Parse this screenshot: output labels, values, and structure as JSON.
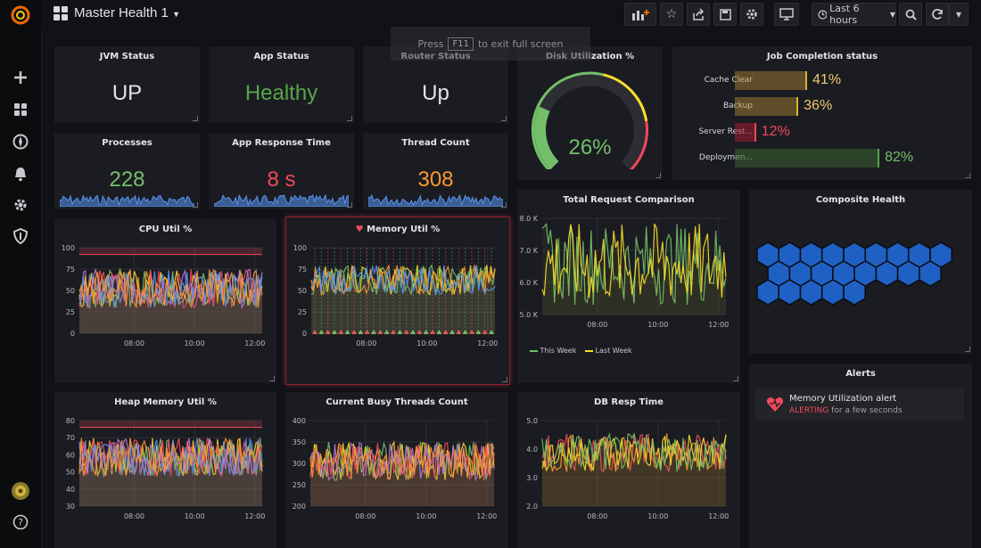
{
  "colors": {
    "bg": "#111217",
    "panel": "#1b1c21",
    "green": "#73bf69",
    "red": "#f2495c",
    "orange": "#ff9830",
    "yellow": "#fade2a",
    "blue": "#5794f2",
    "hex": "#1f60c4"
  },
  "header": {
    "dashboard_title": "Master Health 1",
    "time_range": "Last 6 hours"
  },
  "overlay": {
    "press": "Press",
    "key": "F11",
    "suffix": "to exit full screen"
  },
  "stats": {
    "jvm": {
      "title": "JVM Status",
      "value": "UP"
    },
    "app": {
      "title": "App Status",
      "value": "Healthy"
    },
    "router": {
      "title": "Router Status",
      "value": "Up"
    },
    "processes": {
      "title": "Processes",
      "value": "228"
    },
    "response": {
      "title": "App Response Time",
      "value": "8 s"
    },
    "threads": {
      "title": "Thread Count",
      "value": "308"
    }
  },
  "disk": {
    "title": "Disk Utilization %",
    "value": "26%",
    "level": 0.26
  },
  "jobs": {
    "title": "Job Completion status",
    "items": [
      {
        "label": "Cache Clear",
        "value": "41%",
        "fraction": 0.41
      },
      {
        "label": "Backup",
        "value": "36%",
        "fraction": 0.36
      },
      {
        "label": "Server Rest...",
        "value": "12%",
        "fraction": 0.12
      },
      {
        "label": "Deploymen...",
        "value": "82%",
        "fraction": 0.82
      }
    ]
  },
  "composite": {
    "title": "Composite Health"
  },
  "alerts": {
    "title": "Alerts",
    "item": {
      "name": "Memory Utilization alert",
      "state": "ALERTING",
      "duration": "for a few seconds"
    }
  },
  "chart_data": [
    {
      "type": "line",
      "title": "CPU Util %",
      "y_ticks": [
        "100",
        "75",
        "50",
        "25",
        "0"
      ],
      "x_ticks": [
        "08:00",
        "10:00",
        "12:00"
      ],
      "ylim": [
        0,
        100
      ]
    },
    {
      "type": "line",
      "title": "Memory Util %",
      "y_ticks": [
        "100",
        "75",
        "50",
        "25",
        "0"
      ],
      "x_ticks": [
        "08:00",
        "10:00",
        "12:00"
      ],
      "ylim": [
        0,
        100
      ]
    },
    {
      "type": "line",
      "title": "Total Request Comparison",
      "y_ticks": [
        "8.0 K",
        "7.0 K",
        "6.0 K",
        "5.0 K"
      ],
      "x_ticks": [
        "08:00",
        "10:00",
        "12:00"
      ],
      "ylim": [
        5000,
        8000
      ],
      "series": [
        {
          "name": "This Week"
        },
        {
          "name": "Last Week"
        }
      ]
    },
    {
      "type": "line",
      "title": "Heap Memory Util %",
      "y_ticks": [
        "80",
        "70",
        "60",
        "50",
        "40",
        "30"
      ],
      "x_ticks": [
        "08:00",
        "10:00",
        "12:00"
      ],
      "ylim": [
        30,
        80
      ]
    },
    {
      "type": "line",
      "title": "Current Busy Threads Count",
      "y_ticks": [
        "400",
        "350",
        "300",
        "250",
        "200"
      ],
      "x_ticks": [
        "08:00",
        "10:00",
        "12:00"
      ],
      "ylim": [
        200,
        400
      ]
    },
    {
      "type": "line",
      "title": "DB Resp Time",
      "y_ticks": [
        "5.0",
        "4.0",
        "3.0",
        "2.0"
      ],
      "x_ticks": [
        "08:00",
        "10:00",
        "12:00"
      ],
      "ylim": [
        2,
        5
      ]
    }
  ]
}
